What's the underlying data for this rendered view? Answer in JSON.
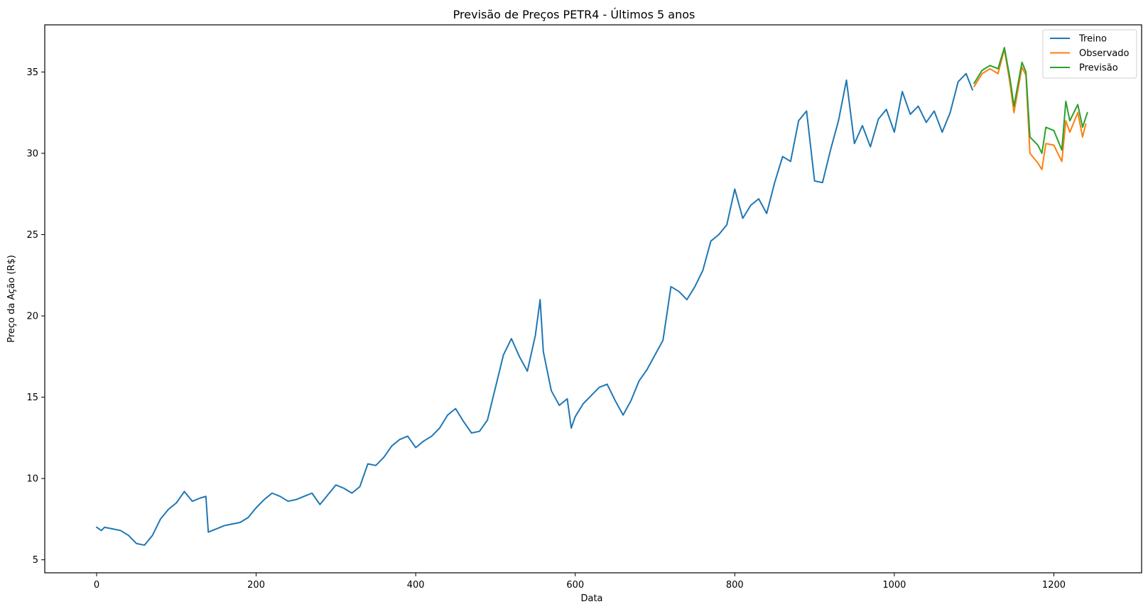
{
  "chart_data": {
    "type": "line",
    "title": "Previsão de Preços PETR4 - Últimos 5 anos",
    "xlabel": "Data",
    "ylabel": "Preço da Ação (R$)",
    "xlim": [
      -65,
      1310
    ],
    "ylim": [
      4.2,
      37.9
    ],
    "x_ticks": [
      0,
      200,
      400,
      600,
      800,
      1000,
      1200
    ],
    "y_ticks": [
      5,
      10,
      15,
      20,
      25,
      30,
      35
    ],
    "legend_position": "top-right",
    "grid": false,
    "series": [
      {
        "name": "Treino",
        "color": "#1f77b4",
        "points": [
          [
            0,
            7.0
          ],
          [
            6,
            6.8
          ],
          [
            10,
            7.0
          ],
          [
            20,
            6.9
          ],
          [
            30,
            6.8
          ],
          [
            40,
            6.5
          ],
          [
            50,
            6.0
          ],
          [
            60,
            5.9
          ],
          [
            70,
            6.5
          ],
          [
            80,
            7.5
          ],
          [
            90,
            8.1
          ],
          [
            100,
            8.5
          ],
          [
            110,
            9.2
          ],
          [
            120,
            8.6
          ],
          [
            130,
            8.8
          ],
          [
            137,
            8.9
          ],
          [
            140,
            6.7
          ],
          [
            150,
            6.9
          ],
          [
            160,
            7.1
          ],
          [
            170,
            7.2
          ],
          [
            180,
            7.3
          ],
          [
            190,
            7.6
          ],
          [
            200,
            8.2
          ],
          [
            210,
            8.7
          ],
          [
            220,
            9.1
          ],
          [
            230,
            8.9
          ],
          [
            240,
            8.6
          ],
          [
            250,
            8.7
          ],
          [
            260,
            8.9
          ],
          [
            270,
            9.1
          ],
          [
            280,
            8.4
          ],
          [
            290,
            9.0
          ],
          [
            300,
            9.6
          ],
          [
            310,
            9.4
          ],
          [
            320,
            9.1
          ],
          [
            330,
            9.5
          ],
          [
            340,
            10.9
          ],
          [
            350,
            10.8
          ],
          [
            360,
            11.3
          ],
          [
            370,
            12.0
          ],
          [
            380,
            12.4
          ],
          [
            390,
            12.6
          ],
          [
            400,
            11.9
          ],
          [
            410,
            12.3
          ],
          [
            420,
            12.6
          ],
          [
            430,
            13.1
          ],
          [
            440,
            13.9
          ],
          [
            450,
            14.3
          ],
          [
            460,
            13.5
          ],
          [
            470,
            12.8
          ],
          [
            480,
            12.9
          ],
          [
            490,
            13.6
          ],
          [
            500,
            15.6
          ],
          [
            510,
            17.6
          ],
          [
            520,
            18.6
          ],
          [
            530,
            17.5
          ],
          [
            540,
            16.6
          ],
          [
            550,
            18.8
          ],
          [
            556,
            21.0
          ],
          [
            560,
            17.8
          ],
          [
            570,
            15.4
          ],
          [
            580,
            14.5
          ],
          [
            590,
            14.9
          ],
          [
            595,
            13.1
          ],
          [
            600,
            13.8
          ],
          [
            610,
            14.6
          ],
          [
            620,
            15.1
          ],
          [
            630,
            15.6
          ],
          [
            640,
            15.8
          ],
          [
            650,
            14.8
          ],
          [
            660,
            13.9
          ],
          [
            670,
            14.8
          ],
          [
            680,
            16.0
          ],
          [
            690,
            16.7
          ],
          [
            700,
            17.6
          ],
          [
            710,
            18.5
          ],
          [
            720,
            21.8
          ],
          [
            730,
            21.5
          ],
          [
            740,
            21.0
          ],
          [
            750,
            21.8
          ],
          [
            760,
            22.8
          ],
          [
            770,
            24.6
          ],
          [
            780,
            25.0
          ],
          [
            790,
            25.6
          ],
          [
            800,
            27.8
          ],
          [
            810,
            26.0
          ],
          [
            820,
            26.8
          ],
          [
            830,
            27.2
          ],
          [
            840,
            26.3
          ],
          [
            850,
            28.2
          ],
          [
            860,
            29.8
          ],
          [
            870,
            29.5
          ],
          [
            880,
            32.0
          ],
          [
            890,
            32.6
          ],
          [
            900,
            28.3
          ],
          [
            910,
            28.2
          ],
          [
            920,
            30.2
          ],
          [
            930,
            32.0
          ],
          [
            940,
            34.5
          ],
          [
            950,
            30.6
          ],
          [
            960,
            31.7
          ],
          [
            970,
            30.4
          ],
          [
            980,
            32.1
          ],
          [
            990,
            32.7
          ],
          [
            1000,
            31.3
          ],
          [
            1010,
            33.8
          ],
          [
            1020,
            32.4
          ],
          [
            1030,
            32.9
          ],
          [
            1040,
            31.9
          ],
          [
            1050,
            32.6
          ],
          [
            1060,
            31.3
          ],
          [
            1070,
            32.5
          ],
          [
            1080,
            34.4
          ],
          [
            1090,
            34.9
          ],
          [
            1098,
            33.9
          ]
        ]
      },
      {
        "name": "Observado",
        "color": "#ff7f0e",
        "points": [
          [
            1100,
            34.1
          ],
          [
            1110,
            34.9
          ],
          [
            1120,
            35.2
          ],
          [
            1130,
            34.9
          ],
          [
            1138,
            36.4
          ],
          [
            1145,
            34.3
          ],
          [
            1150,
            32.5
          ],
          [
            1160,
            35.3
          ],
          [
            1165,
            34.8
          ],
          [
            1170,
            30.0
          ],
          [
            1180,
            29.4
          ],
          [
            1185,
            29.0
          ],
          [
            1190,
            30.6
          ],
          [
            1200,
            30.5
          ],
          [
            1210,
            29.5
          ],
          [
            1215,
            32.0
          ],
          [
            1220,
            31.3
          ],
          [
            1230,
            32.5
          ],
          [
            1236,
            31.0
          ],
          [
            1240,
            31.8
          ]
        ]
      },
      {
        "name": "Previsão",
        "color": "#2ca02c",
        "points": [
          [
            1100,
            34.3
          ],
          [
            1110,
            35.1
          ],
          [
            1120,
            35.4
          ],
          [
            1130,
            35.2
          ],
          [
            1138,
            36.5
          ],
          [
            1145,
            34.6
          ],
          [
            1150,
            32.9
          ],
          [
            1160,
            35.6
          ],
          [
            1165,
            35.0
          ],
          [
            1170,
            31.0
          ],
          [
            1180,
            30.5
          ],
          [
            1185,
            30.0
          ],
          [
            1190,
            31.6
          ],
          [
            1200,
            31.4
          ],
          [
            1210,
            30.2
          ],
          [
            1215,
            33.2
          ],
          [
            1220,
            32.0
          ],
          [
            1230,
            33.0
          ],
          [
            1236,
            31.6
          ],
          [
            1242,
            32.5
          ]
        ]
      }
    ]
  }
}
